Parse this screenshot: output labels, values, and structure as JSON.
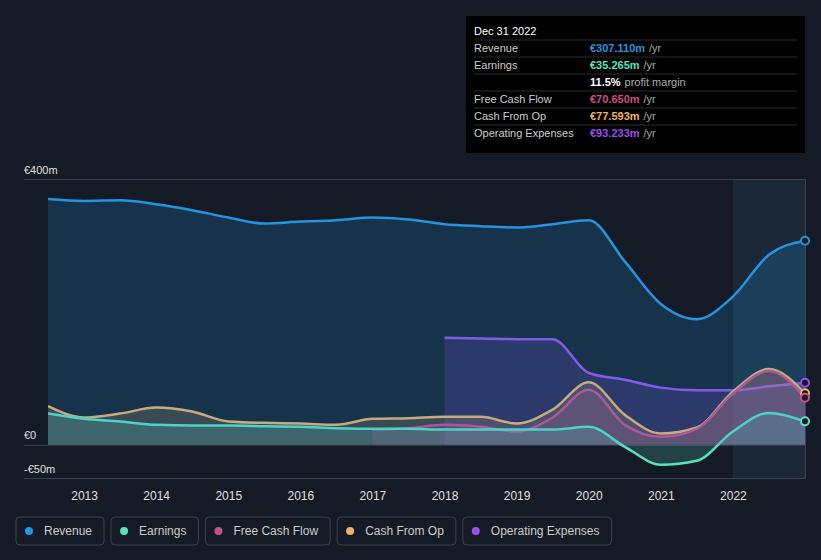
{
  "chart_data": {
    "type": "area",
    "x": [
      2012.5,
      2013,
      2013.5,
      2014,
      2014.5,
      2015,
      2015.5,
      2016,
      2016.5,
      2017,
      2017.5,
      2018,
      2018.5,
      2019,
      2019.5,
      2020,
      2020.5,
      2021,
      2021.5,
      2022,
      2022.5,
      2023
    ],
    "xlim": [
      2012.5,
      2023
    ],
    "xticks": [
      2013,
      2014,
      2015,
      2016,
      2017,
      2018,
      2019,
      2020,
      2021,
      2022
    ],
    "ylim": [
      -50,
      400
    ],
    "yticks": [
      {
        "value": 400,
        "label": "€400m"
      },
      {
        "value": 0,
        "label": "€0"
      },
      {
        "value": -50,
        "label": "-€50m"
      }
    ],
    "grid": true,
    "legend": "bottom",
    "series": [
      {
        "name": "Revenue",
        "color": "#2394df",
        "values": [
          370,
          367,
          368,
          362,
          353,
          342,
          333,
          336,
          338,
          342,
          339,
          332,
          329,
          327,
          332,
          338,
          276,
          212,
          189,
          223,
          286,
          307.11
        ]
      },
      {
        "name": "Earnings",
        "color": "#58e2c2",
        "values": [
          47,
          39,
          35,
          30,
          29,
          29,
          28,
          27,
          25,
          24,
          24,
          23,
          23,
          23,
          23,
          27,
          -3,
          -30,
          -24,
          20,
          48,
          35.265
        ]
      },
      {
        "name": "Free Cash Flow",
        "color": "#cc4c89",
        "values": [
          null,
          null,
          null,
          null,
          null,
          null,
          null,
          null,
          null,
          23,
          25,
          30,
          27,
          20,
          41,
          83,
          30,
          12,
          24,
          77,
          111,
          70.65
        ]
      },
      {
        "name": "Cash From Op",
        "color": "#eeb165",
        "values": [
          58,
          41,
          47,
          56,
          50,
          35,
          33,
          32,
          30,
          39,
          40,
          42,
          42,
          32,
          53,
          94,
          45,
          17,
          26,
          80,
          114,
          77.593
        ]
      },
      {
        "name": "Operating Expenses",
        "color": "#9c4dee",
        "values": [
          null,
          null,
          null,
          null,
          null,
          null,
          null,
          null,
          null,
          null,
          null,
          161,
          160,
          159,
          159,
          108,
          98,
          86,
          82,
          82,
          88,
          93.233
        ]
      }
    ],
    "tooltip": {
      "title": "Dec 31 2022",
      "rows": [
        {
          "label": "Revenue",
          "value": "€307.110m",
          "unit": "/yr",
          "color": "#2394df"
        },
        {
          "label": "Earnings",
          "value": "€35.265m",
          "unit": "/yr",
          "color": "#58e2c2"
        },
        {
          "value": "11.5%",
          "unit": "profit margin",
          "color": "#ffffff"
        },
        {
          "label": "Free Cash Flow",
          "value": "€70.650m",
          "unit": "/yr",
          "color": "#cc4c89"
        },
        {
          "label": "Cash From Op",
          "value": "€77.593m",
          "unit": "/yr",
          "color": "#eeb165"
        },
        {
          "label": "Operating Expenses",
          "value": "€93.233m",
          "unit": "/yr",
          "color": "#9c4dee"
        }
      ]
    }
  }
}
